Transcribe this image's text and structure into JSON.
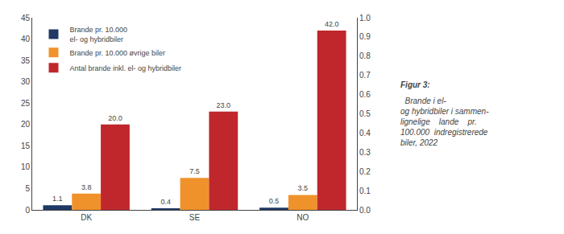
{
  "chart_data": {
    "type": "bar",
    "categories": [
      "DK",
      "SE",
      "NO"
    ],
    "series": [
      {
        "name": "Brande pr. 10.000\nel- og hybridbiler",
        "color": "#1f3864",
        "values": [
          1.1,
          0.4,
          0.5
        ]
      },
      {
        "name": "Brande pr. 10.000 øvrige biler",
        "color": "#f0922b",
        "values": [
          3.8,
          7.5,
          3.5
        ]
      },
      {
        "name": "Antal brande inkl. el- og hybridbiler",
        "color": "#c0272d",
        "values": [
          20.0,
          23.0,
          42.0
        ],
        "value_labels": [
          "20.0",
          "23.0",
          "42.0"
        ]
      }
    ],
    "ylim": [
      0,
      45
    ],
    "yticks": [
      0,
      5,
      10,
      15,
      20,
      25,
      30,
      35,
      40,
      45
    ],
    "y2lim": [
      0,
      1.0
    ],
    "y2ticks": [
      {
        "value": 0,
        "label": "0.0"
      },
      0.1,
      0.2,
      0.3,
      0.4,
      0.5,
      0.6,
      0.7,
      0.8,
      0.9,
      {
        "value": 1,
        "label": "1.0"
      }
    ],
    "annotations": [
      "Figur 3:",
      "  Brande i el-\nog hybridbiler i sammen-\nlignelige    lande    pr.\n100.000  indregistrerede\nbiler, 2022"
    ],
    "legend": "upper left",
    "data_labels": true,
    "grid": false
  }
}
